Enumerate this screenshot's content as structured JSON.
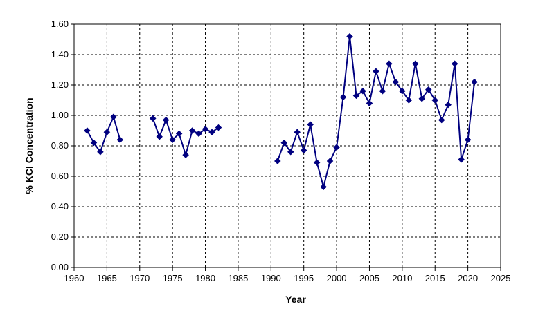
{
  "chart_data": {
    "type": "line",
    "title": "",
    "xlabel": "Year",
    "ylabel": "% KCl Concentration",
    "xlim": [
      1960,
      2025
    ],
    "ylim": [
      0,
      1.6
    ],
    "x_ticks": [
      "1960",
      "1965",
      "1970",
      "1975",
      "1980",
      "1985",
      "1990",
      "1995",
      "2000",
      "2005",
      "2010",
      "2015",
      "2020",
      "2025"
    ],
    "y_ticks": [
      "0.00",
      "0.20",
      "0.40",
      "0.60",
      "0.80",
      "1.00",
      "1.20",
      "1.40",
      "1.60"
    ],
    "grid": true,
    "legend": "none",
    "marker": "diamond",
    "color": "#000080",
    "series": [
      {
        "segments": [
          {
            "x": [
              1962,
              1963,
              1964,
              1965,
              1966,
              1967
            ],
            "y": [
              0.9,
              0.82,
              0.76,
              0.89,
              0.99,
              0.84
            ]
          },
          {
            "x": [
              1972,
              1973,
              1974,
              1975,
              1976,
              1977,
              1978,
              1979,
              1980,
              1981,
              1982
            ],
            "y": [
              0.98,
              0.86,
              0.97,
              0.84,
              0.88,
              0.74,
              0.9,
              0.88,
              0.91,
              0.89,
              0.92
            ]
          },
          {
            "x": [
              1991,
              1992,
              1993,
              1994,
              1995,
              1996,
              1997,
              1998,
              1999,
              2000,
              2001,
              2002,
              2003,
              2004,
              2005,
              2006,
              2007,
              2008,
              2009,
              2010,
              2011,
              2012,
              2013,
              2014,
              2015,
              2016,
              2017,
              2018,
              2019,
              2020,
              2021
            ],
            "y": [
              0.7,
              0.82,
              0.76,
              0.89,
              0.77,
              0.94,
              0.69,
              0.53,
              0.7,
              0.79,
              1.12,
              1.52,
              1.13,
              1.16,
              1.08,
              1.29,
              1.16,
              1.34,
              1.22,
              1.16,
              1.1,
              1.34,
              1.11,
              1.17,
              1.1,
              0.97,
              1.07,
              1.34,
              0.71,
              0.84,
              1.22
            ]
          }
        ]
      }
    ]
  }
}
